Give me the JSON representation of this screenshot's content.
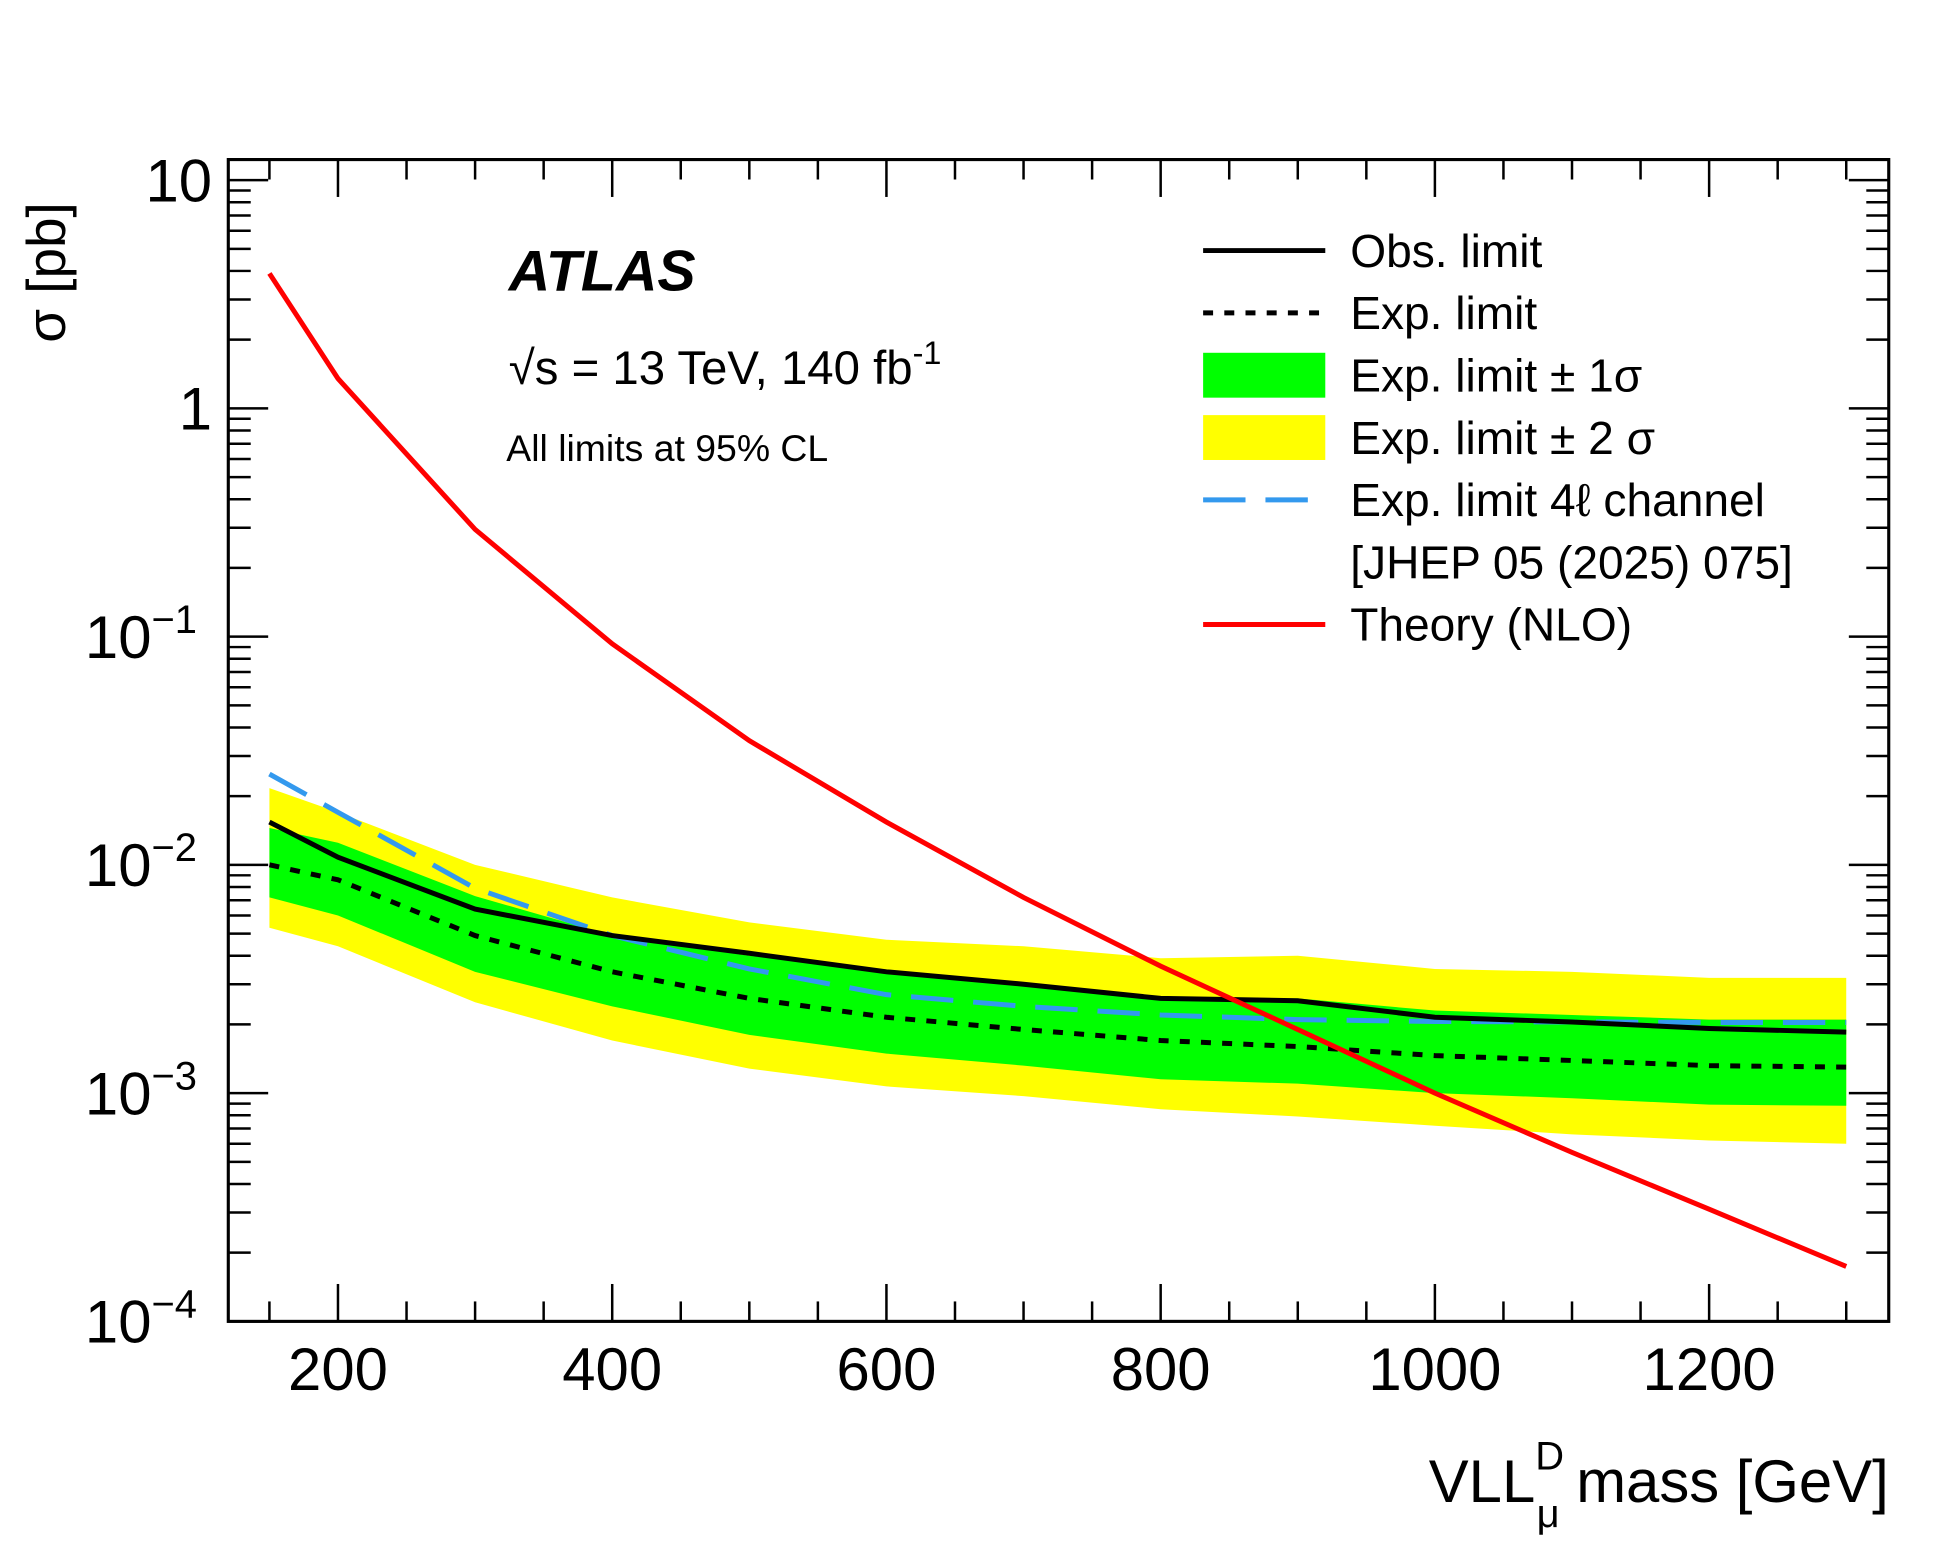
{
  "chart_data": {
    "type": "line",
    "title": "",
    "experiment": "ATLAS",
    "energy_label": "√s = 13 TeV, 140 fb",
    "energy_sup": "-1",
    "cl_label": "All limits at 95% CL",
    "xlabel": "VLL",
    "xlabel_sup": "D",
    "xlabel_sub": "μ",
    "xlabel_tail": " mass [GeV]",
    "ylabel": "σ [pb]",
    "xlim": [
      120,
      1331
    ],
    "ylim_log10": [
      -4,
      1.09
    ],
    "log_y": true,
    "x_ticks": [
      200,
      400,
      600,
      800,
      1000,
      1200
    ],
    "x_tick_labels": [
      "200",
      "400",
      "600",
      "800",
      "1000",
      "1200"
    ],
    "y_ticks": [
      {
        "exp": 1,
        "label": "10",
        "sup": ""
      },
      {
        "exp": 0,
        "label": "1",
        "sup": ""
      },
      {
        "exp": -1,
        "label": "10",
        "sup": "−1"
      },
      {
        "exp": -2,
        "label": "10",
        "sup": "−2"
      },
      {
        "exp": -3,
        "label": "10",
        "sup": "−3"
      },
      {
        "exp": -4,
        "label": "10",
        "sup": "−4"
      }
    ],
    "x": [
      150,
      200,
      300,
      400,
      500,
      600,
      700,
      800,
      900,
      1000,
      1100,
      1200,
      1300
    ],
    "bands": [
      {
        "name": "Exp. limit ± 2σ",
        "color": "#ffff00",
        "upper": [
          0.0217,
          0.017,
          0.01,
          0.0072,
          0.0056,
          0.0047,
          0.0044,
          0.0039,
          0.004,
          0.0035,
          0.0034,
          0.0032,
          0.0032
        ],
        "lower": [
          0.0053,
          0.0044,
          0.0025,
          0.0017,
          0.00128,
          0.00107,
          0.00097,
          0.00085,
          0.00079,
          0.00072,
          0.00066,
          0.00062,
          0.0006
        ]
      },
      {
        "name": "Exp. limit ± 1σ",
        "color": "#00ff00",
        "upper": [
          0.0145,
          0.0125,
          0.0073,
          0.0049,
          0.004,
          0.0034,
          0.003,
          0.0026,
          0.0026,
          0.0023,
          0.0022,
          0.0021,
          0.0021
        ],
        "lower": [
          0.0072,
          0.006,
          0.0034,
          0.0024,
          0.0018,
          0.00149,
          0.00132,
          0.00115,
          0.0011,
          0.001,
          0.00095,
          0.00089,
          0.00088
        ]
      }
    ],
    "series": [
      {
        "name": "Exp. limit 4l channel [JHEP 05 (2025) 075]",
        "color": "#3399ee",
        "style": "dashed",
        "values": [
          0.025,
          0.017,
          0.0079,
          0.0049,
          0.0035,
          0.0027,
          0.0024,
          0.0022,
          0.0021,
          0.00206,
          0.00205,
          0.00204,
          0.00204
        ]
      },
      {
        "name": "Exp. limit",
        "color": "#000000",
        "style": "dotted",
        "values": [
          0.01,
          0.0086,
          0.0049,
          0.0034,
          0.0026,
          0.00215,
          0.0019,
          0.0017,
          0.0016,
          0.00146,
          0.00139,
          0.00132,
          0.0013
        ]
      },
      {
        "name": "Obs. limit",
        "color": "#000000",
        "style": "solid",
        "values": [
          0.0154,
          0.0108,
          0.0064,
          0.0049,
          0.0041,
          0.0034,
          0.003,
          0.0026,
          0.00254,
          0.00215,
          0.00205,
          0.00192,
          0.00185
        ]
      },
      {
        "name": "Theory (NLO)",
        "color": "#ff0000",
        "style": "solid",
        "values": [
          3.9,
          1.35,
          0.295,
          0.093,
          0.035,
          0.0154,
          0.0072,
          0.0036,
          0.0019,
          0.001,
          0.00055,
          0.00031,
          0.000174
        ]
      }
    ],
    "legend": {
      "placement": "top-right",
      "entries": [
        {
          "label": "Obs. limit",
          "kind": "solid",
          "color": "#000000"
        },
        {
          "label": "Exp. limit",
          "kind": "dotted",
          "color": "#000000"
        },
        {
          "label": "Exp. limit ± 1σ",
          "kind": "box",
          "color": "#00ff00"
        },
        {
          "label": "Exp. limit ± 2 σ",
          "kind": "box",
          "color": "#ffff00"
        },
        {
          "label": "Exp. limit 4ℓ channel",
          "kind": "dashed",
          "color": "#3399ee"
        },
        {
          "label": "[JHEP 05 (2025) 075]",
          "kind": "none",
          "color": ""
        },
        {
          "label": "Theory (NLO)",
          "kind": "solid",
          "color": "#ff0000"
        }
      ]
    }
  }
}
